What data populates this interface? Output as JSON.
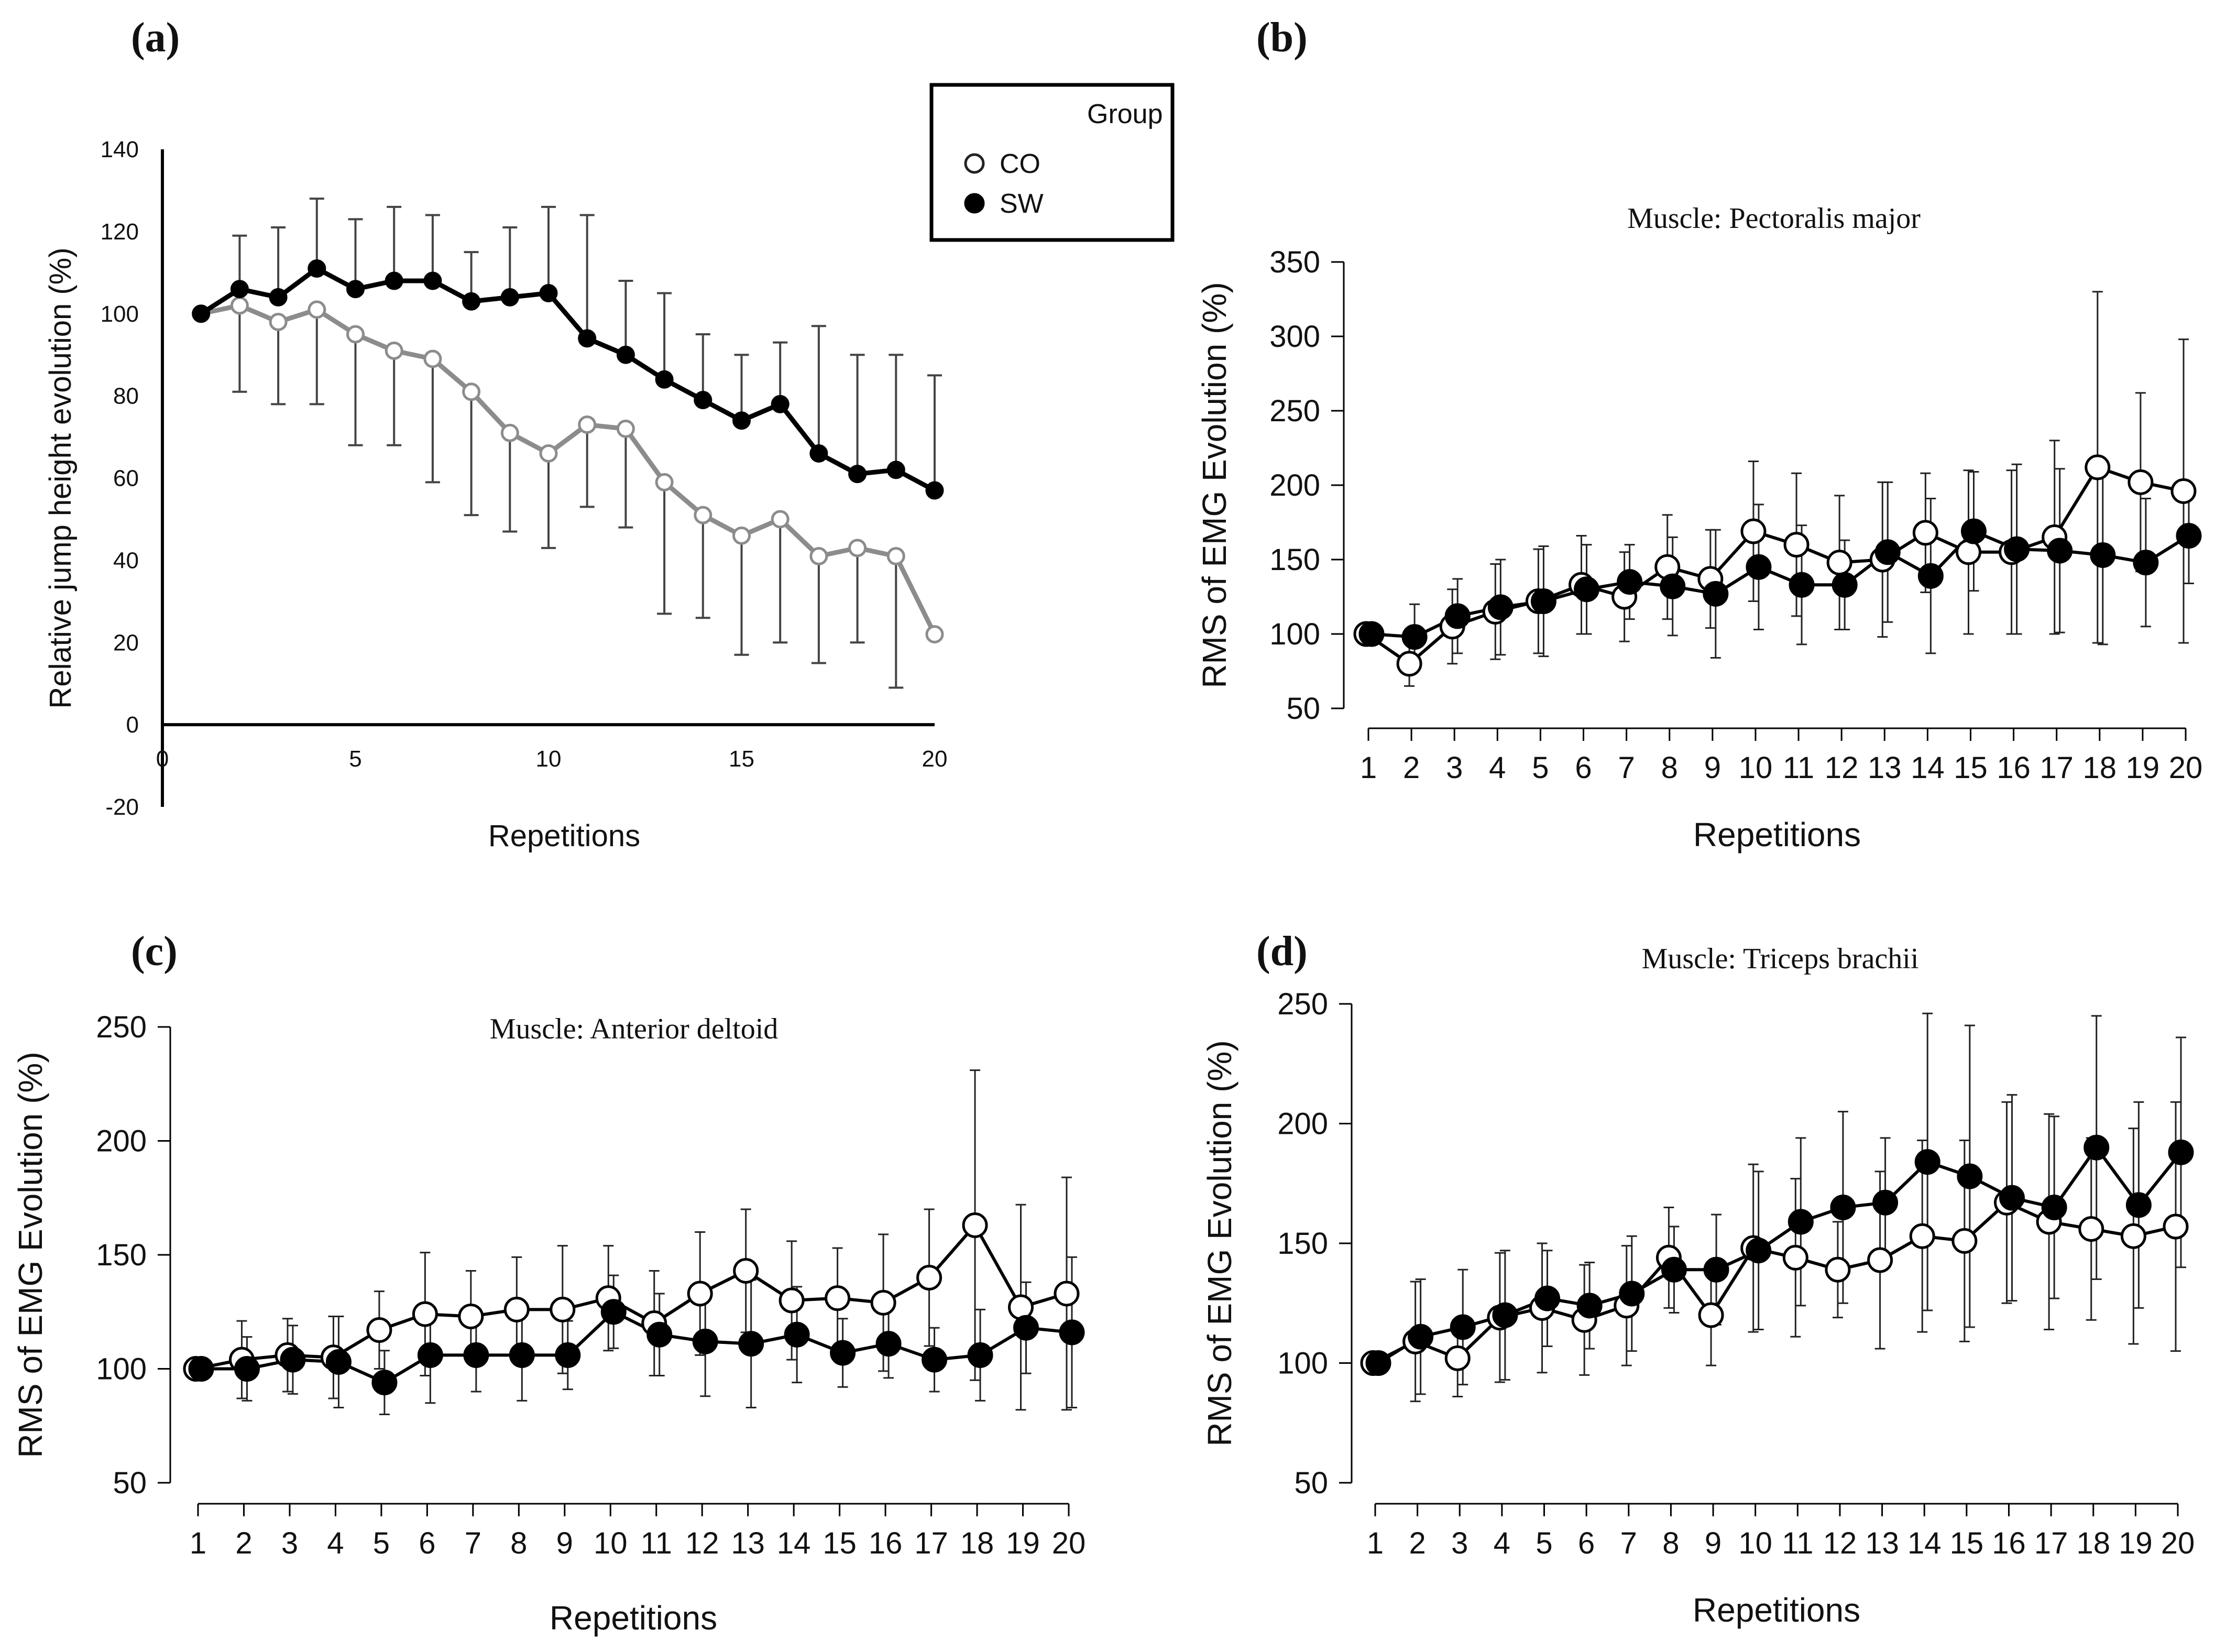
{
  "figure": {
    "legend": {
      "title": "Group",
      "entries": [
        {
          "label": "CO",
          "marker": "open-circle"
        },
        {
          "label": "SW",
          "marker": "filled-circle"
        }
      ]
    }
  },
  "colors": {
    "co_a": "#8c8c8c",
    "sw": "#000000",
    "co_marker_fill": "#ffffff"
  },
  "chart_data": [
    {
      "panel": "(a)",
      "type": "line",
      "title": "",
      "xlabel": "Repetitions",
      "ylabel": "Relative jump height evolution (%)",
      "xlim": [
        0,
        20
      ],
      "ylim": [
        -20,
        140
      ],
      "x_ticks": [
        "0",
        "5",
        "10",
        "15",
        "20"
      ],
      "y_ticks": [
        "-20",
        "0",
        "20",
        "40",
        "60",
        "80",
        "100",
        "120",
        "140"
      ],
      "x": [
        1,
        2,
        3,
        4,
        5,
        6,
        7,
        8,
        9,
        10,
        11,
        12,
        13,
        14,
        15,
        16,
        17,
        18,
        19,
        20
      ],
      "series": [
        {
          "name": "CO",
          "values": [
            100,
            102,
            98,
            101,
            95,
            91,
            89,
            81,
            71,
            66,
            73,
            72,
            59,
            51,
            46,
            50,
            41,
            43,
            41,
            22
          ],
          "sd": [
            0,
            21,
            20,
            23,
            27,
            23,
            30,
            30,
            24,
            23,
            20,
            24,
            32,
            25,
            29,
            30,
            26,
            23,
            32,
            0
          ]
        },
        {
          "name": "SW",
          "values": [
            100,
            106,
            104,
            111,
            106,
            108,
            108,
            103,
            104,
            105,
            94,
            90,
            84,
            79,
            74,
            78,
            66,
            61,
            62,
            57
          ],
          "sd": [
            0,
            13,
            17,
            17,
            17,
            18,
            16,
            12,
            17,
            21,
            30,
            18,
            21,
            16,
            16,
            15,
            31,
            29,
            28,
            28
          ]
        }
      ]
    },
    {
      "panel": "(b)",
      "type": "line",
      "title": "Muscle: Pectoralis major",
      "xlabel": "Repetitions",
      "ylabel": "RMS of EMG Evolution (%)",
      "ylim": [
        50,
        350
      ],
      "y_ticks": [
        "50",
        "100",
        "150",
        "200",
        "250",
        "300",
        "350"
      ],
      "categories": [
        "1",
        "2",
        "3",
        "4",
        "5",
        "6",
        "7",
        "8",
        "9",
        "10",
        "11",
        "12",
        "13",
        "14",
        "15",
        "16",
        "17",
        "18",
        "19",
        "20"
      ],
      "series": [
        {
          "name": "CO",
          "values": [
            100,
            80,
            105,
            115,
            122,
            133,
            125,
            145,
            137,
            169,
            160,
            148,
            150,
            168,
            155,
            155,
            165,
            212,
            202,
            196
          ],
          "sd": [
            0,
            15,
            25,
            32,
            35,
            33,
            30,
            35,
            33,
            47,
            48,
            45,
            52,
            40,
            55,
            55,
            65,
            118,
            60,
            102
          ]
        },
        {
          "name": "SW",
          "values": [
            100,
            98,
            112,
            118,
            122,
            130,
            135,
            132,
            127,
            145,
            133,
            133,
            155,
            139,
            169,
            157,
            156,
            153,
            148,
            166
          ],
          "sd": [
            0,
            22,
            25,
            32,
            37,
            30,
            25,
            33,
            43,
            42,
            40,
            30,
            47,
            52,
            40,
            57,
            55,
            60,
            43,
            32
          ]
        }
      ]
    },
    {
      "panel": "(c)",
      "type": "line",
      "title": "Muscle: Anterior deltoid",
      "xlabel": "Repetitions",
      "ylabel": "RMS of EMG Evolution (%)",
      "ylim": [
        50,
        250
      ],
      "y_ticks": [
        "50",
        "100",
        "150",
        "200",
        "250"
      ],
      "categories": [
        "1",
        "2",
        "3",
        "4",
        "5",
        "6",
        "7",
        "8",
        "9",
        "10",
        "11",
        "12",
        "13",
        "14",
        "15",
        "16",
        "17",
        "18",
        "19",
        "20"
      ],
      "series": [
        {
          "name": "CO",
          "values": [
            100,
            104,
            106,
            105,
            117,
            124,
            123,
            126,
            126,
            131,
            120,
            133,
            143,
            130,
            131,
            129,
            140,
            163,
            127,
            133
          ],
          "sd": [
            0,
            17,
            16,
            18,
            17,
            27,
            20,
            23,
            28,
            23,
            23,
            27,
            27,
            26,
            22,
            30,
            30,
            68,
            45,
            51
          ]
        },
        {
          "name": "SW",
          "values": [
            100,
            100,
            104,
            103,
            94,
            106,
            106,
            106,
            106,
            125,
            115,
            112,
            111,
            115,
            107,
            111,
            104,
            106,
            118,
            116
          ],
          "sd": [
            0,
            14,
            15,
            20,
            14,
            21,
            16,
            20,
            15,
            16,
            18,
            24,
            28,
            21,
            15,
            15,
            14,
            20,
            20,
            33
          ]
        }
      ]
    },
    {
      "panel": "(d)",
      "type": "line",
      "title": "Muscle: Triceps brachii",
      "xlabel": "Repetitions",
      "ylabel": "RMS of EMG Evolution (%)",
      "ylim": [
        50,
        250
      ],
      "y_ticks": [
        "50",
        "100",
        "150",
        "200",
        "250"
      ],
      "categories": [
        "1",
        "2",
        "3",
        "4",
        "5",
        "6",
        "7",
        "8",
        "9",
        "10",
        "11",
        "12",
        "13",
        "14",
        "15",
        "16",
        "17",
        "18",
        "19",
        "20"
      ],
      "series": [
        {
          "name": "CO",
          "values": [
            100,
            109,
            102,
            119,
            123,
            118,
            124,
            144,
            120,
            148,
            144,
            139,
            143,
            153,
            151,
            167,
            159,
            156,
            153,
            157
          ],
          "sd": [
            0,
            25,
            16,
            27,
            27,
            23,
            25,
            21,
            21,
            35,
            33,
            20,
            37,
            40,
            42,
            42,
            45,
            38,
            45,
            52
          ]
        },
        {
          "name": "SW",
          "values": [
            100,
            111,
            115,
            120,
            127,
            124,
            129,
            139,
            139,
            147,
            159,
            165,
            167,
            184,
            178,
            169,
            165,
            190,
            166,
            188
          ],
          "sd": [
            0,
            24,
            24,
            27,
            20,
            18,
            24,
            18,
            23,
            33,
            35,
            40,
            27,
            62,
            63,
            43,
            38,
            55,
            43,
            48
          ]
        }
      ]
    }
  ]
}
